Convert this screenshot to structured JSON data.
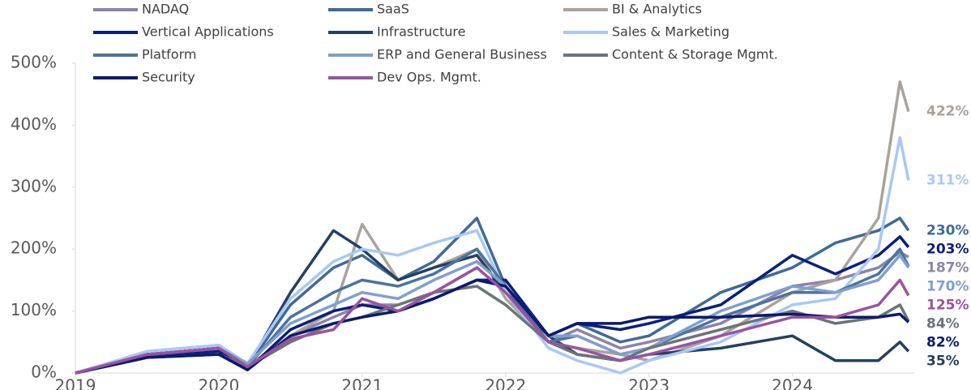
{
  "chart_data": {
    "type": "line",
    "x": [
      2019.0,
      2019.5,
      2020.0,
      2020.2,
      2020.5,
      2020.8,
      2021.0,
      2021.25,
      2021.5,
      2021.8,
      2022.0,
      2022.3,
      2022.5,
      2022.8,
      2023.0,
      2023.5,
      2024.0,
      2024.3,
      2024.6,
      2024.75,
      2024.81
    ],
    "xlim": [
      2019.0,
      2024.85
    ],
    "xticks": [
      2019,
      2020,
      2021,
      2022,
      2023,
      2024
    ],
    "ylim": [
      0,
      500
    ],
    "yticks": [
      {
        "value": 0,
        "label": "0%"
      },
      {
        "value": 100,
        "label": "100%"
      },
      {
        "value": 200,
        "label": "200%"
      },
      {
        "value": 300,
        "label": "300%"
      },
      {
        "value": 400,
        "label": "400%"
      },
      {
        "value": 500,
        "label": "500%"
      }
    ],
    "series": [
      {
        "name": "NADAQ",
        "color": "#8b84a8",
        "end_label": "187%",
        "values": [
          0,
          25,
          40,
          10,
          60,
          90,
          110,
          110,
          130,
          170,
          130,
          50,
          70,
          40,
          50,
          80,
          140,
          150,
          170,
          195,
          187
        ]
      },
      {
        "name": "SaaS",
        "color": "#3f6a98",
        "end_label": "230%",
        "values": [
          0,
          30,
          40,
          10,
          110,
          170,
          190,
          150,
          180,
          250,
          140,
          60,
          80,
          50,
          60,
          130,
          170,
          210,
          230,
          250,
          230
        ]
      },
      {
        "name": "BI & Analytics",
        "color": "#aaa39d",
        "end_label": "422%",
        "values": [
          0,
          30,
          40,
          10,
          60,
          100,
          240,
          150,
          170,
          200,
          120,
          50,
          40,
          30,
          20,
          60,
          130,
          150,
          250,
          470,
          422
        ]
      },
      {
        "name": "Vertical Applications",
        "color": "#0b1f7a",
        "end_label": "203%",
        "values": [
          0,
          25,
          35,
          5,
          70,
          100,
          110,
          100,
          120,
          150,
          150,
          60,
          80,
          70,
          80,
          110,
          190,
          160,
          190,
          220,
          203
        ]
      },
      {
        "name": "Infrastructure",
        "color": "#24405f",
        "end_label": "35%",
        "values": [
          0,
          30,
          40,
          10,
          130,
          230,
          200,
          150,
          170,
          190,
          130,
          60,
          30,
          20,
          30,
          40,
          60,
          20,
          20,
          50,
          35
        ]
      },
      {
        "name": "Sales & Marketing",
        "color": "#a8c8f5",
        "end_label": "311%",
        "values": [
          0,
          35,
          45,
          15,
          120,
          180,
          200,
          190,
          210,
          230,
          130,
          40,
          20,
          0,
          20,
          50,
          110,
          120,
          200,
          380,
          311
        ]
      },
      {
        "name": "Platform",
        "color": "#4d739e",
        "values": [
          0,
          30,
          40,
          10,
          90,
          130,
          150,
          140,
          160,
          200,
          140,
          50,
          60,
          30,
          40,
          90,
          130,
          130,
          160,
          200,
          172
        ]
      },
      {
        "name": "ERP and General Business",
        "color": "#7f9fcf",
        "end_label": "170%",
        "values": [
          0,
          30,
          40,
          15,
          80,
          110,
          130,
          120,
          150,
          180,
          140,
          60,
          60,
          30,
          40,
          100,
          140,
          130,
          150,
          190,
          170
        ]
      },
      {
        "name": "Content & Storage Mgmt.",
        "color": "#6b7478",
        "end_label": "84%",
        "values": [
          0,
          25,
          30,
          10,
          50,
          80,
          90,
          110,
          130,
          140,
          110,
          50,
          30,
          20,
          40,
          70,
          100,
          80,
          90,
          110,
          84
        ]
      },
      {
        "name": "Security",
        "color": "#0a1a6e",
        "end_label": "82%",
        "values": [
          0,
          25,
          30,
          5,
          60,
          80,
          90,
          100,
          120,
          150,
          140,
          60,
          80,
          80,
          90,
          90,
          95,
          90,
          90,
          95,
          82
        ]
      },
      {
        "name": "Dev Ops. Mgmt.",
        "color": "#9a52a0",
        "end_label": "125%",
        "values": [
          0,
          30,
          40,
          10,
          55,
          70,
          120,
          100,
          130,
          170,
          130,
          50,
          40,
          20,
          30,
          60,
          90,
          90,
          110,
          150,
          125
        ]
      }
    ]
  }
}
